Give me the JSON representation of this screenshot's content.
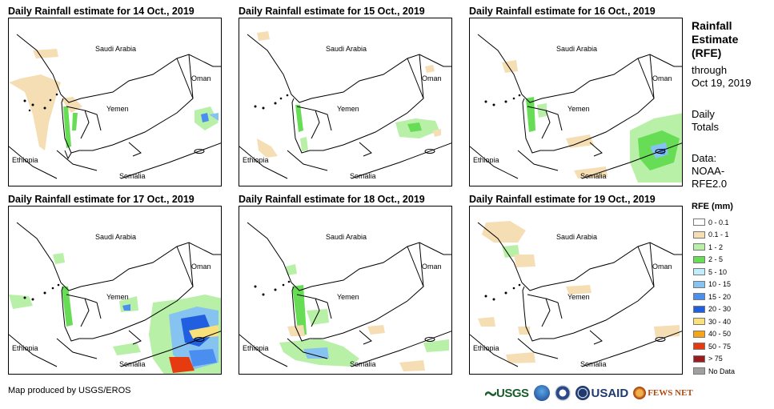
{
  "panels": [
    {
      "title": "Daily Rainfall estimate for 14 Oct., 2019"
    },
    {
      "title": "Daily Rainfall estimate for 15 Oct., 2019"
    },
    {
      "title": "Daily Rainfall estimate for 16 Oct., 2019"
    },
    {
      "title": "Daily Rainfall estimate for 17 Oct., 2019"
    },
    {
      "title": "Daily Rainfall estimate for 18 Oct., 2019"
    },
    {
      "title": "Daily Rainfall estimate for 19 Oct., 2019"
    }
  ],
  "map_labels": {
    "saudi": "Saudi Arabia",
    "oman": "Oman",
    "yemen": "Yemen",
    "ethiopia": "Ethiopia",
    "somalia": "Somalia"
  },
  "sidebar": {
    "title_line1": "Rainfall",
    "title_line2": "Estimate",
    "title_line3": "(RFE)",
    "sub_line1": "through",
    "sub_line2": "Oct 19, 2019",
    "daily_line1": "Daily",
    "daily_line2": "Totals",
    "data_line1": "Data:",
    "data_line2": "NOAA-",
    "data_line3": "RFE2.0"
  },
  "legend": {
    "title": "RFE (mm)",
    "items": [
      {
        "label": "0 - 0.1",
        "color": "#ffffff"
      },
      {
        "label": "0.1 - 1",
        "color": "#f5deb3"
      },
      {
        "label": "1 - 2",
        "color": "#b8f0a8"
      },
      {
        "label": "2 - 5",
        "color": "#66dd55"
      },
      {
        "label": "5 - 10",
        "color": "#bfeefa"
      },
      {
        "label": "10 - 15",
        "color": "#86c3f0"
      },
      {
        "label": "15 - 20",
        "color": "#4a8ef0"
      },
      {
        "label": "20 - 30",
        "color": "#1f5fe0"
      },
      {
        "label": "30 - 40",
        "color": "#f8e07a"
      },
      {
        "label": "40 - 50",
        "color": "#f5a516"
      },
      {
        "label": "50 - 75",
        "color": "#e63a10"
      },
      {
        "label": "> 75",
        "color": "#9b1c1c"
      },
      {
        "label": "No Data",
        "color": "#a0a0a0"
      }
    ]
  },
  "credit": "Map produced by USGS/EROS",
  "logos": {
    "usgs": "USGS",
    "usaid": "USAID",
    "fews": "FEWS NET"
  }
}
